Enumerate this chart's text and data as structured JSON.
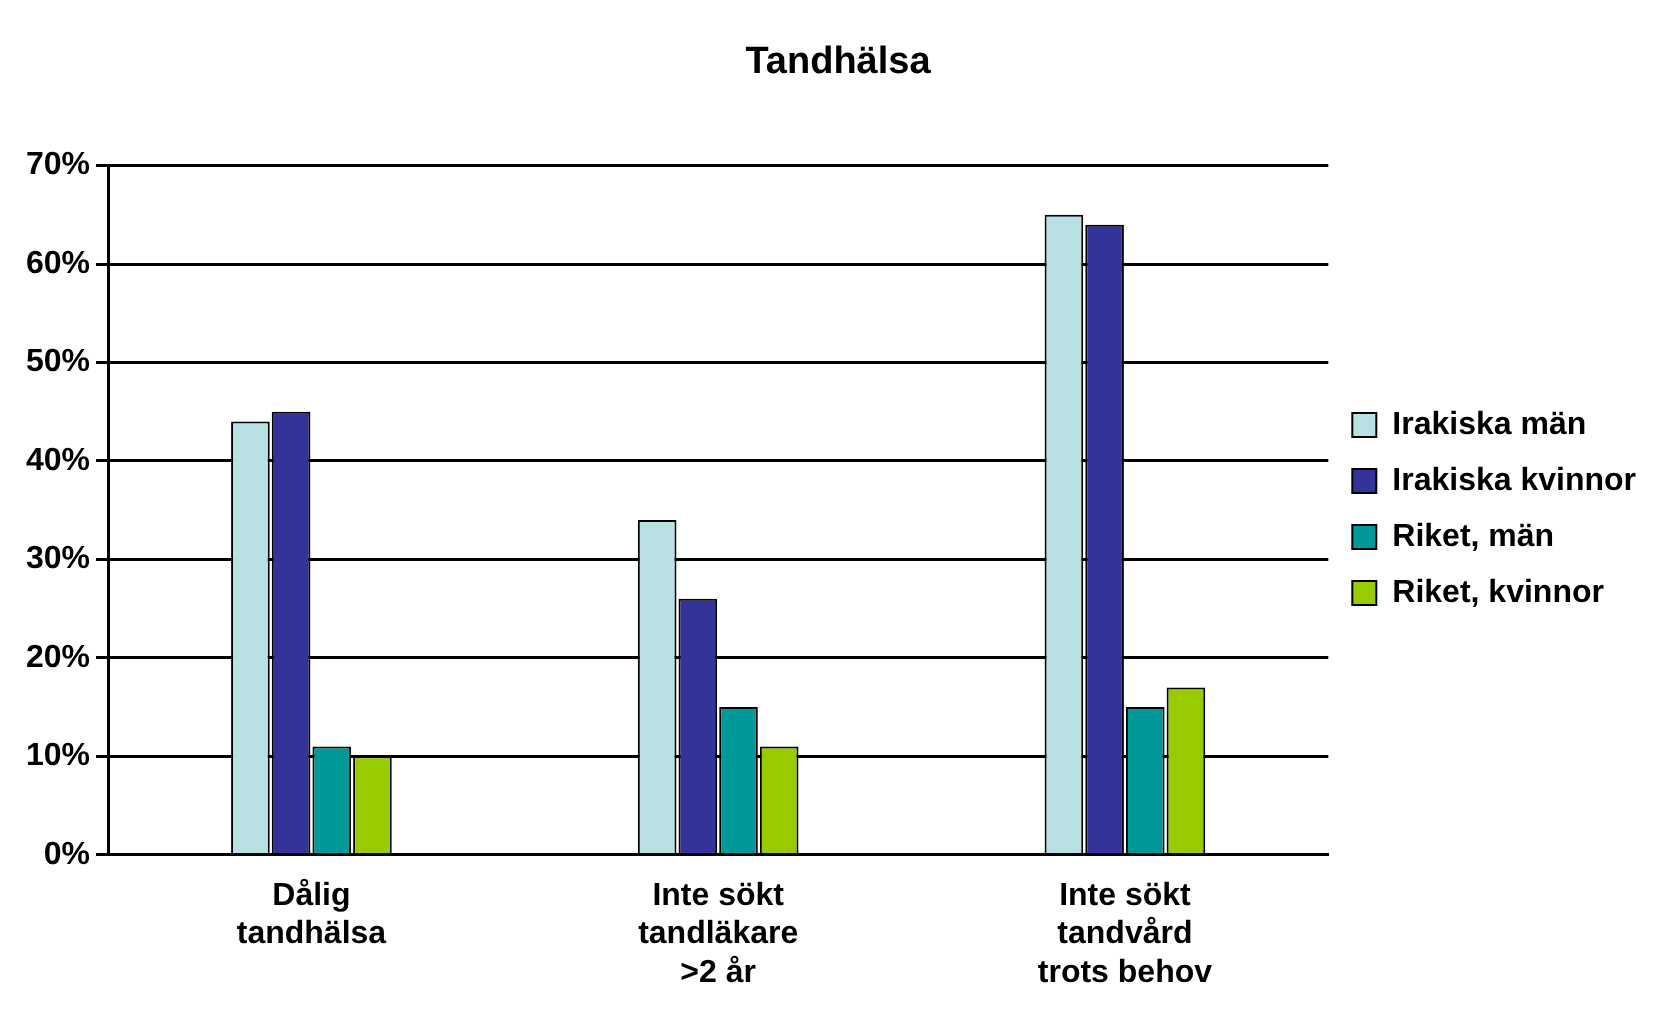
{
  "chart_data": {
    "type": "bar",
    "title": "Tandhälsa",
    "categories": [
      "Dålig tandhälsa",
      "Inte sökt tandläkare >2 år",
      "Inte sökt tandvård trots behov"
    ],
    "series": [
      {
        "name": "Irakiska män",
        "color": "#b9e0e3",
        "values": [
          44,
          34,
          65
        ]
      },
      {
        "name": "Irakiska kvinnor",
        "color": "#333399",
        "values": [
          45,
          26,
          64
        ]
      },
      {
        "name": "Riket, män",
        "color": "#009999",
        "values": [
          11,
          15,
          15
        ]
      },
      {
        "name": "Riket, kvinnor",
        "color": "#99cc00",
        "values": [
          10,
          11,
          17
        ]
      }
    ],
    "ylim": [
      0,
      70
    ],
    "yticks": [
      {
        "value": 0,
        "label": "0%"
      },
      {
        "value": 10,
        "label": "10%"
      },
      {
        "value": 20,
        "label": "20%"
      },
      {
        "value": 30,
        "label": "30%"
      },
      {
        "value": 40,
        "label": "40%"
      },
      {
        "value": 50,
        "label": "50%"
      },
      {
        "value": 60,
        "label": "60%"
      },
      {
        "value": 70,
        "label": "70%"
      }
    ],
    "grid": "y",
    "legend": "right"
  }
}
